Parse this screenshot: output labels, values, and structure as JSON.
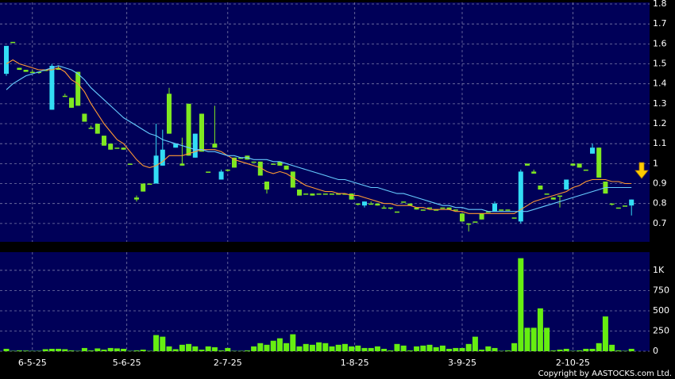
{
  "chart_data": {
    "type": "candlestick",
    "up_color": "#33ddf5",
    "down_color": "#7fe821",
    "volume_color": "#66ee11",
    "grid": true,
    "copyright": "Copyright by AASTOCKS.com Ltd.",
    "xticks": [
      {
        "value": 4,
        "label": "6-5-25"
      },
      {
        "value": 18.5,
        "label": "5-6-25"
      },
      {
        "value": 34,
        "label": "2-7-25"
      },
      {
        "value": 53.5,
        "label": "1-8-25"
      },
      {
        "value": 70,
        "label": "3-9-25"
      },
      {
        "value": 87,
        "label": "2-10-25"
      }
    ],
    "ylim": [
      0.608,
      1.808
    ],
    "yticks": [
      0.7,
      0.8,
      0.9,
      {
        "value": 1,
        "label": "1"
      },
      1.1,
      1.2,
      1.3,
      1.4,
      1.5,
      1.6,
      1.7,
      1.8
    ],
    "y2lim": [
      0,
      1225
    ],
    "y2ticks": [
      0,
      250,
      500,
      750,
      {
        "value": 1000,
        "label": "1K"
      }
    ],
    "open": [
      1.45,
      1.61,
      1.48,
      1.47,
      1.46,
      1.46,
      1.47,
      1.27,
      1.48,
      1.34,
      1.33,
      1.46,
      1.25,
      1.18,
      1.2,
      1.14,
      1.1,
      1.08,
      1.08,
      1.0,
      0.83,
      0.9,
      0.9,
      0.9,
      0.99,
      1.35,
      1.08,
      1.0,
      1.3,
      1.03,
      1.25,
      0.96,
      1.1,
      0.92,
      0.97,
      1.03,
      1.03,
      1.04,
      1.01,
      1.01,
      0.91,
      1.0,
      1.01,
      0.99,
      0.96,
      0.87,
      0.85,
      0.85,
      0.85,
      0.85,
      0.85,
      0.85,
      0.85,
      0.85,
      0.8,
      0.79,
      0.8,
      0.8,
      0.78,
      0.78,
      0.76,
      0.81,
      0.8,
      0.78,
      0.77,
      0.78,
      0.77,
      0.78,
      0.78,
      0.77,
      0.75,
      0.7,
      0.71,
      0.75,
      0.76,
      0.76,
      0.77,
      0.77,
      0.73,
      0.71,
      1.0,
      0.96,
      0.89,
      0.85,
      0.83,
      0.84,
      0.87,
      1.0,
      1.0,
      0.97,
      1.05,
      1.08,
      0.91,
      0.8,
      0.78,
      0.79,
      0.79
    ],
    "high": [
      1.59,
      1.61,
      1.48,
      1.47,
      1.47,
      1.46,
      1.47,
      1.5,
      1.49,
      1.35,
      1.33,
      1.46,
      1.25,
      1.19,
      1.2,
      1.14,
      1.1,
      1.08,
      1.08,
      1.0,
      0.84,
      0.9,
      0.9,
      1.2,
      1.17,
      1.38,
      1.1,
      1.13,
      1.3,
      1.15,
      1.25,
      0.96,
      1.29,
      0.97,
      0.97,
      1.03,
      1.03,
      1.04,
      1.01,
      1.01,
      0.91,
      1.0,
      1.01,
      0.99,
      0.96,
      0.87,
      0.85,
      0.85,
      0.85,
      0.85,
      0.85,
      0.85,
      0.85,
      0.85,
      0.8,
      0.81,
      0.81,
      0.8,
      0.79,
      0.78,
      0.76,
      0.81,
      0.8,
      0.78,
      0.77,
      0.78,
      0.77,
      0.78,
      0.78,
      0.77,
      0.75,
      0.7,
      0.71,
      0.75,
      0.76,
      0.81,
      0.77,
      0.77,
      0.73,
      0.97,
      1.0,
      0.97,
      0.89,
      0.85,
      0.83,
      0.84,
      0.92,
      1.0,
      1.0,
      0.97,
      1.1,
      1.08,
      0.91,
      0.8,
      0.78,
      0.79,
      0.82
    ],
    "low": [
      1.44,
      1.61,
      1.47,
      1.46,
      1.46,
      1.45,
      1.47,
      1.27,
      1.47,
      1.34,
      1.28,
      1.29,
      1.21,
      1.18,
      1.15,
      1.09,
      1.07,
      1.08,
      1.07,
      1.0,
      0.81,
      0.86,
      0.9,
      0.9,
      0.99,
      1.15,
      1.08,
      0.99,
      1.04,
      1.03,
      1.06,
      0.96,
      1.08,
      0.92,
      0.96,
      0.98,
      1.03,
      1.02,
      1.01,
      0.94,
      0.85,
      1.0,
      0.99,
      0.97,
      0.88,
      0.84,
      0.85,
      0.84,
      0.85,
      0.85,
      0.85,
      0.85,
      0.85,
      0.82,
      0.79,
      0.78,
      0.8,
      0.79,
      0.78,
      0.77,
      0.76,
      0.81,
      0.79,
      0.77,
      0.77,
      0.78,
      0.77,
      0.78,
      0.77,
      0.77,
      0.71,
      0.66,
      0.71,
      0.72,
      0.76,
      0.76,
      0.77,
      0.77,
      0.73,
      0.7,
      0.99,
      0.95,
      0.87,
      0.85,
      0.82,
      0.78,
      0.87,
      0.99,
      0.98,
      0.97,
      1.05,
      0.93,
      0.85,
      0.79,
      0.78,
      0.79,
      0.74
    ],
    "close": [
      1.59,
      1.61,
      1.47,
      1.46,
      1.46,
      1.46,
      1.47,
      1.49,
      1.47,
      1.34,
      1.28,
      1.29,
      1.21,
      1.18,
      1.15,
      1.09,
      1.07,
      1.08,
      1.07,
      1.0,
      0.82,
      0.86,
      0.9,
      1.04,
      1.07,
      1.15,
      1.1,
      0.99,
      1.04,
      1.15,
      1.06,
      0.96,
      1.08,
      0.96,
      0.97,
      0.98,
      1.03,
      1.02,
      1.01,
      0.94,
      0.87,
      1.0,
      0.99,
      0.97,
      0.88,
      0.84,
      0.85,
      0.84,
      0.85,
      0.85,
      0.85,
      0.85,
      0.85,
      0.82,
      0.8,
      0.81,
      0.8,
      0.79,
      0.78,
      0.78,
      0.76,
      0.81,
      0.79,
      0.77,
      0.77,
      0.78,
      0.77,
      0.78,
      0.77,
      0.77,
      0.71,
      0.7,
      0.71,
      0.72,
      0.76,
      0.8,
      0.77,
      0.77,
      0.73,
      0.96,
      0.99,
      0.95,
      0.87,
      0.85,
      0.82,
      0.84,
      0.92,
      0.99,
      0.98,
      0.97,
      1.08,
      0.93,
      0.85,
      0.8,
      0.78,
      0.79,
      0.82
    ],
    "volume": [
      30,
      5,
      10,
      8,
      5,
      5,
      25,
      30,
      30,
      25,
      10,
      5,
      40,
      10,
      35,
      20,
      40,
      35,
      30,
      5,
      10,
      20,
      5,
      200,
      180,
      60,
      25,
      80,
      90,
      60,
      20,
      60,
      50,
      10,
      40,
      5,
      5,
      10,
      60,
      100,
      80,
      130,
      160,
      100,
      210,
      60,
      90,
      80,
      110,
      100,
      60,
      80,
      90,
      60,
      70,
      40,
      40,
      60,
      30,
      10,
      90,
      70,
      10,
      60,
      70,
      80,
      50,
      70,
      30,
      40,
      40,
      90,
      180,
      20,
      60,
      40,
      5,
      10,
      100,
      1150,
      290,
      290,
      530,
      290,
      10,
      20,
      30,
      5,
      10,
      30,
      30,
      100,
      430,
      80,
      10,
      5,
      30
    ],
    "moving_averages": [
      {
        "color": "#ff9933",
        "values": [
          1.5,
          1.52,
          1.5,
          1.49,
          1.48,
          1.47,
          1.47,
          1.47,
          1.48,
          1.46,
          1.42,
          1.4,
          1.36,
          1.3,
          1.25,
          1.2,
          1.16,
          1.12,
          1.1,
          1.06,
          1.02,
          0.99,
          0.98,
          0.99,
          1.01,
          1.04,
          1.04,
          1.04,
          1.05,
          1.06,
          1.07,
          1.07,
          1.07,
          1.06,
          1.04,
          1.02,
          1.01,
          1.0,
          0.99,
          0.98,
          0.96,
          0.95,
          0.96,
          0.95,
          0.93,
          0.91,
          0.89,
          0.88,
          0.87,
          0.86,
          0.86,
          0.85,
          0.85,
          0.84,
          0.84,
          0.83,
          0.82,
          0.81,
          0.8,
          0.8,
          0.79,
          0.79,
          0.79,
          0.78,
          0.78,
          0.77,
          0.77,
          0.77,
          0.77,
          0.76,
          0.76,
          0.75,
          0.75,
          0.75,
          0.75,
          0.75,
          0.75,
          0.75,
          0.75,
          0.77,
          0.79,
          0.81,
          0.82,
          0.83,
          0.84,
          0.85,
          0.86,
          0.88,
          0.89,
          0.91,
          0.92,
          0.92,
          0.92,
          0.91,
          0.91,
          0.9,
          0.9
        ]
      },
      {
        "color": "#66ccff",
        "values": [
          1.37,
          1.4,
          1.42,
          1.44,
          1.45,
          1.46,
          1.47,
          1.48,
          1.49,
          1.48,
          1.47,
          1.45,
          1.42,
          1.38,
          1.35,
          1.32,
          1.29,
          1.26,
          1.23,
          1.21,
          1.19,
          1.17,
          1.15,
          1.14,
          1.12,
          1.11,
          1.1,
          1.09,
          1.08,
          1.07,
          1.07,
          1.06,
          1.06,
          1.05,
          1.04,
          1.04,
          1.03,
          1.03,
          1.02,
          1.02,
          1.02,
          1.01,
          1.01,
          1.0,
          0.99,
          0.98,
          0.97,
          0.96,
          0.95,
          0.94,
          0.93,
          0.92,
          0.92,
          0.91,
          0.9,
          0.89,
          0.88,
          0.88,
          0.87,
          0.86,
          0.85,
          0.85,
          0.84,
          0.83,
          0.82,
          0.81,
          0.8,
          0.79,
          0.79,
          0.78,
          0.78,
          0.77,
          0.77,
          0.77,
          0.76,
          0.76,
          0.76,
          0.76,
          0.76,
          0.76,
          0.76,
          0.77,
          0.78,
          0.79,
          0.8,
          0.81,
          0.82,
          0.83,
          0.84,
          0.85,
          0.86,
          0.87,
          0.88,
          0.88,
          0.88,
          0.88,
          0.88
        ]
      }
    ]
  }
}
